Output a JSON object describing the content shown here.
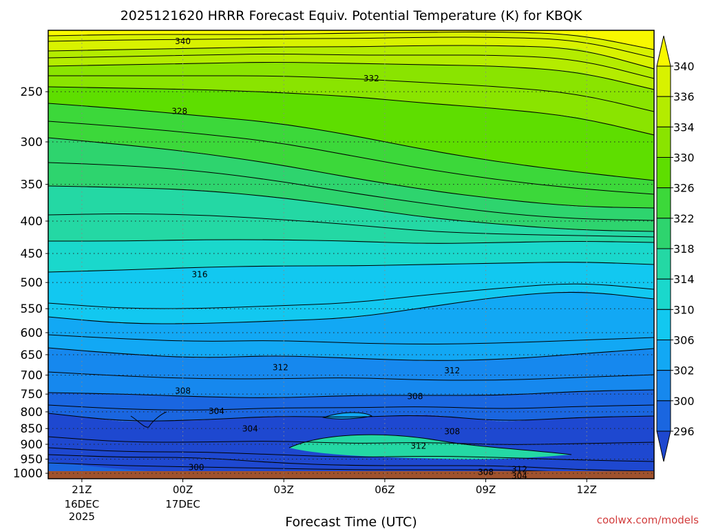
{
  "chart_data": {
    "type": "contour",
    "title": "2025121620 HRRR Forecast Equiv. Potential Temperature (K) for KBQK",
    "xlabel": "Forecast Time (UTC)",
    "ylabel": "",
    "credit": "coolwx.com/models",
    "x_ticks": [
      {
        "hour": 0,
        "label": "21Z",
        "date_lines": [
          "16DEC",
          "2025"
        ]
      },
      {
        "hour": 3,
        "label": "00Z",
        "date_lines": [
          "17DEC"
        ]
      },
      {
        "hour": 6,
        "label": "03Z",
        "date_lines": []
      },
      {
        "hour": 9,
        "label": "06Z",
        "date_lines": []
      },
      {
        "hour": 12,
        "label": "09Z",
        "date_lines": []
      },
      {
        "hour": 15,
        "label": "12Z",
        "date_lines": []
      }
    ],
    "x_range_hours": [
      -1,
      17
    ],
    "y_ticks_hpa": [
      250,
      300,
      350,
      400,
      450,
      500,
      550,
      600,
      650,
      700,
      750,
      800,
      850,
      900,
      950,
      1000
    ],
    "y_range_hpa": [
      200,
      1020
    ],
    "colorbar": {
      "levels": [
        340,
        336,
        334,
        330,
        326,
        322,
        318,
        314,
        310,
        306,
        302,
        300,
        296
      ],
      "colors": [
        "#f8f800",
        "#d8f200",
        "#b4ec00",
        "#8ae400",
        "#5ede00",
        "#3cd83a",
        "#2ed46e",
        "#24d8a4",
        "#1ad8cc",
        "#12c8f0",
        "#12a8f4",
        "#1688ee",
        "#1a66e0",
        "#1e48d0"
      ]
    },
    "contour_labels": [
      {
        "value": "340",
        "hour": 3.0,
        "hpa": 208
      },
      {
        "value": "332",
        "hour": 8.6,
        "hpa": 238
      },
      {
        "value": "328",
        "hour": 2.9,
        "hpa": 268
      },
      {
        "value": "316",
        "hour": 3.5,
        "hpa": 485
      },
      {
        "value": "312",
        "hour": 5.9,
        "hpa": 680
      },
      {
        "value": "312",
        "hour": 11.0,
        "hpa": 688
      },
      {
        "value": "308",
        "hour": 3.0,
        "hpa": 740
      },
      {
        "value": "308",
        "hour": 9.9,
        "hpa": 755
      },
      {
        "value": "304",
        "hour": 4.0,
        "hpa": 797
      },
      {
        "value": "304",
        "hour": 5.0,
        "hpa": 850
      },
      {
        "value": "308",
        "hour": 11.0,
        "hpa": 858
      },
      {
        "value": "312",
        "hour": 10.0,
        "hpa": 905
      },
      {
        "value": "300",
        "hour": 3.4,
        "hpa": 978
      },
      {
        "value": "308",
        "hour": 12.0,
        "hpa": 995
      },
      {
        "value": "312",
        "hour": 13.0,
        "hpa": 985
      },
      {
        "value": "304",
        "hour": 13.0,
        "hpa": 1008
      }
    ]
  }
}
